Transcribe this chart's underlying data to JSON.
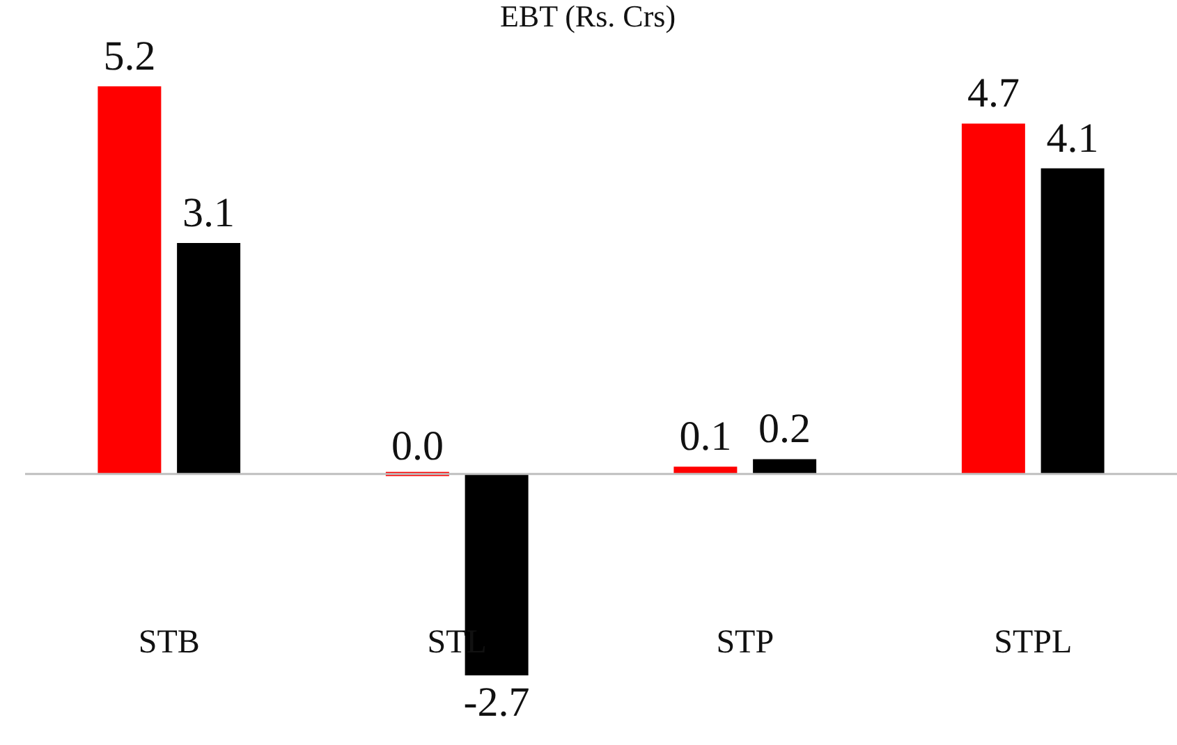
{
  "chart_data": {
    "type": "bar",
    "title": "EBT (Rs. Crs)",
    "categories": [
      "STB",
      "STL",
      "STP",
      "STPL"
    ],
    "series": [
      {
        "color": "#ff0000",
        "values": [
          5.2,
          0.0,
          0.1,
          4.7
        ],
        "value_labels": [
          "5.2",
          "0.0",
          "0.1",
          "4.7"
        ]
      },
      {
        "color": "#000000",
        "values": [
          3.1,
          -2.7,
          0.2,
          4.1
        ],
        "value_labels": [
          "3.1",
          "-2.7",
          "0.2",
          "4.1"
        ]
      }
    ],
    "legend": false
  }
}
